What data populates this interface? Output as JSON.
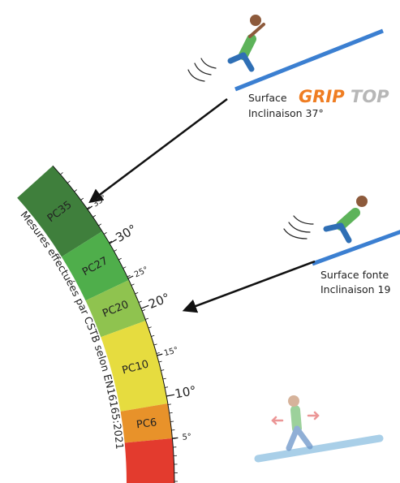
{
  "surfaces": [
    {
      "label": "Surface",
      "logo": {
        "grip": "GRIP",
        "top": "TOP"
      },
      "inclination": "Inclinaison 37°"
    },
    {
      "label": "Surface fonte",
      "inclination": "Inclinaison 19"
    }
  ],
  "scale": {
    "segments": [
      "PC35",
      "PC27",
      "PC20",
      "PC10",
      "PC6"
    ],
    "ticks": [
      "35°",
      "30°",
      "25°",
      "20°",
      "15°",
      "10°",
      "5°"
    ],
    "note": "Mesures effectuées par CSTB selon EN16165:2021"
  }
}
